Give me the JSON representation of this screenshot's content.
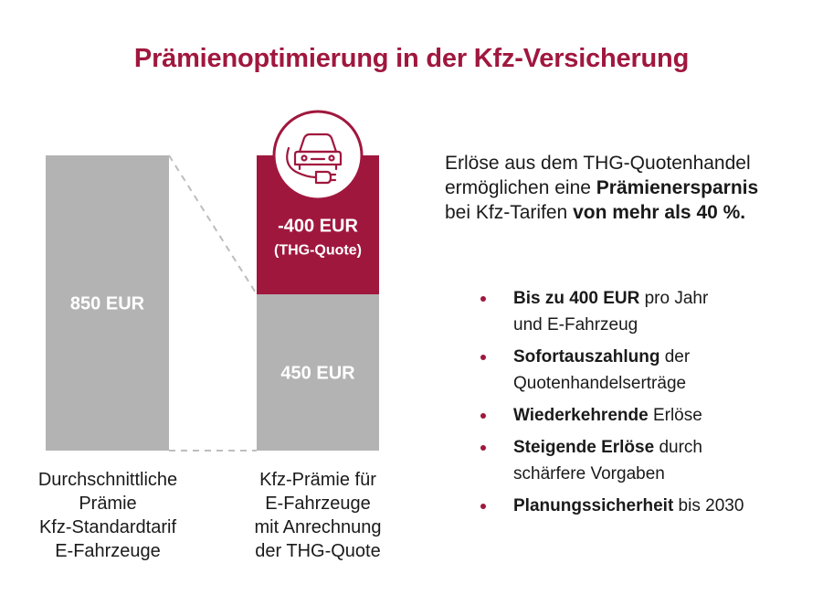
{
  "title": "Prämienoptimierung in der Kfz-Versicherung",
  "chart_data": {
    "type": "bar",
    "categories": [
      "Durchschnittliche Prämie Kfz-Standardtarif E-Fahrzeuge",
      "Kfz-Prämie für E-Fahrzeuge mit Anrechnung der THG-Quote"
    ],
    "series": [
      {
        "values": [
          850,
          450
        ]
      },
      {
        "values": [
          0,
          400
        ]
      }
    ],
    "ylim": [
      0,
      850
    ],
    "bar_labels": {
      "standard": "850 EUR",
      "reduced": "450 EUR",
      "thg_amount": "-400 EUR",
      "thg_note": "(THG-Quote)"
    },
    "colors": {
      "gray": "#b3b3b3",
      "accent": "#a0173e",
      "dash": "#bdbdbd"
    },
    "icon": "car-charging-icon"
  },
  "labels": {
    "left": [
      "Durchschnittliche",
      "Prämie",
      "Kfz-Standardtarif",
      "E-Fahrzeuge"
    ],
    "right": [
      "Kfz-Prämie für",
      "E-Fahrzeuge",
      "mit Anrechnung",
      "der THG-Quote"
    ]
  },
  "intro": {
    "line1": "Erlöse aus dem THG-Quotenhandel",
    "line2_pre": "ermöglichen eine ",
    "line2_bold": "Prämienersparnis",
    "line3_pre": "bei Kfz-Tarifen ",
    "line3_bold": "von mehr als 40 %."
  },
  "bullets": [
    {
      "bold": "Bis zu 400 EUR",
      "rest": " pro Jahr",
      "line2": "und E-Fahrzeug"
    },
    {
      "bold": "Sofortauszahlung",
      "rest": " der",
      "line2": "Quotenhandelserträge"
    },
    {
      "bold": "Wiederkehrende",
      "rest": " Erlöse",
      "line2": ""
    },
    {
      "bold": "Steigende Erlöse",
      "rest": " durch",
      "line2": "schärfere Vorgaben"
    },
    {
      "bold": "Planungssicherheit",
      "rest": " bis 2030",
      "line2": ""
    }
  ]
}
